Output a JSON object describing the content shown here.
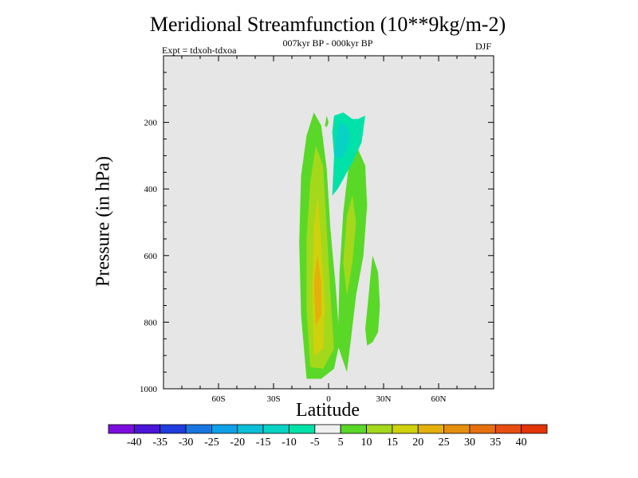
{
  "chart_data": {
    "type": "contour",
    "title": "Meridional Streamfunction (10**9kg/m-2)",
    "subtitle": "007kyr BP - 000kyr BP",
    "annotations": {
      "experiment": "Expt = tdxoh-tdxoa",
      "season": "DJF"
    },
    "xlabel": "Latitude",
    "ylabel": "Pressure (in hPa)",
    "xlim": [
      -90,
      90
    ],
    "ylim": [
      1000,
      0
    ],
    "x_ticks": [
      {
        "value": -60,
        "label": "60S"
      },
      {
        "value": -30,
        "label": "30S"
      },
      {
        "value": 0,
        "label": "0"
      },
      {
        "value": 30,
        "label": "30N"
      },
      {
        "value": 60,
        "label": "60N"
      }
    ],
    "y_ticks": [
      {
        "value": 200,
        "label": "200"
      },
      {
        "value": 400,
        "label": "400"
      },
      {
        "value": 600,
        "label": "600"
      },
      {
        "value": 800,
        "label": "800"
      },
      {
        "value": 1000,
        "label": "1000"
      }
    ],
    "background_color": "#e6e6e6",
    "colorbar": {
      "levels": [
        "-40",
        "-35",
        "-30",
        "-25",
        "-20",
        "-15",
        "-10",
        "-5",
        "5",
        "10",
        "15",
        "20",
        "25",
        "30",
        "35",
        "40"
      ],
      "colors": [
        "#7b0ede",
        "#4a14d9",
        "#1f3cdc",
        "#1976e0",
        "#0ea1e6",
        "#0bbfd6",
        "#08d2c4",
        "#00e2a8",
        "#f0f0f0",
        "#5ad828",
        "#a4d81b",
        "#cfd10d",
        "#e3b00c",
        "#e4900e",
        "#e6700f",
        "#e74e10",
        "#e3340a"
      ]
    },
    "regions": [
      {
        "level": "5 to 10",
        "color": "#5ad828",
        "points": [
          [
            -12,
            970
          ],
          [
            -15,
            780
          ],
          [
            -16,
            560
          ],
          [
            -15,
            360
          ],
          [
            -12,
            240
          ],
          [
            -8,
            170
          ],
          [
            -4,
            210
          ],
          [
            -1,
            340
          ],
          [
            1,
            520
          ],
          [
            4,
            700
          ],
          [
            6,
            860
          ],
          [
            3,
            940
          ],
          [
            -4,
            970
          ],
          [
            -12,
            970
          ]
        ]
      },
      {
        "level": "5 to 10",
        "color": "#5ad828",
        "points": [
          [
            5,
            870
          ],
          [
            6,
            650
          ],
          [
            8,
            470
          ],
          [
            11,
            330
          ],
          [
            16,
            280
          ],
          [
            20,
            330
          ],
          [
            21,
            450
          ],
          [
            19,
            600
          ],
          [
            15,
            720
          ],
          [
            12,
            860
          ],
          [
            10,
            950
          ],
          [
            5,
            870
          ]
        ]
      },
      {
        "level": "5 to 10",
        "color": "#5ad828",
        "points": [
          [
            20,
            820
          ],
          [
            22,
            710
          ],
          [
            23,
            650
          ],
          [
            24,
            600
          ],
          [
            27,
            650
          ],
          [
            28,
            750
          ],
          [
            27,
            830
          ],
          [
            24,
            860
          ],
          [
            21,
            870
          ],
          [
            20,
            820
          ]
        ]
      },
      {
        "level": "5 to 10",
        "color": "#5ad828",
        "points": [
          [
            -2,
            210
          ],
          [
            -1,
            180
          ],
          [
            0,
            200
          ],
          [
            -1,
            215
          ],
          [
            -2,
            210
          ]
        ]
      },
      {
        "level": "10 to 15",
        "color": "#a4d81b",
        "points": [
          [
            -10,
            935
          ],
          [
            -12,
            760
          ],
          [
            -12,
            550
          ],
          [
            -10,
            380
          ],
          [
            -7,
            270
          ],
          [
            -3,
            330
          ],
          [
            -1,
            520
          ],
          [
            1,
            720
          ],
          [
            3,
            880
          ],
          [
            -3,
            940
          ],
          [
            -10,
            935
          ]
        ]
      },
      {
        "level": "10 to 15",
        "color": "#a4d81b",
        "points": [
          [
            8,
            620
          ],
          [
            10,
            480
          ],
          [
            13,
            420
          ],
          [
            15,
            500
          ],
          [
            13,
            620
          ],
          [
            10,
            720
          ],
          [
            8,
            620
          ]
        ]
      },
      {
        "level": "15 to 20",
        "color": "#cfd10d",
        "points": [
          [
            -8,
            900
          ],
          [
            -9,
            720
          ],
          [
            -8,
            520
          ],
          [
            -6,
            420
          ],
          [
            -4,
            560
          ],
          [
            -2,
            760
          ],
          [
            -3,
            880
          ],
          [
            -8,
            900
          ]
        ]
      },
      {
        "level": "20 to 25",
        "color": "#e3b00c",
        "points": [
          [
            -7,
            810
          ],
          [
            -8,
            680
          ],
          [
            -6,
            600
          ],
          [
            -4,
            680
          ],
          [
            -4,
            780
          ],
          [
            -7,
            810
          ]
        ]
      },
      {
        "level": "-5 to -10",
        "color": "#00e2a8",
        "points": [
          [
            2,
            420
          ],
          [
            3,
            300
          ],
          [
            2,
            230
          ],
          [
            3,
            180
          ],
          [
            8,
            170
          ],
          [
            13,
            190
          ],
          [
            16,
            190
          ],
          [
            20,
            180
          ],
          [
            18,
            260
          ],
          [
            13,
            320
          ],
          [
            8,
            370
          ],
          [
            5,
            400
          ],
          [
            2,
            420
          ]
        ]
      },
      {
        "level": "-10 to -15",
        "color": "#08d2c4",
        "points": [
          [
            3,
            300
          ],
          [
            4,
            250
          ],
          [
            6,
            200
          ],
          [
            10,
            210
          ],
          [
            12,
            240
          ],
          [
            10,
            280
          ],
          [
            7,
            310
          ],
          [
            3,
            300
          ]
        ]
      }
    ]
  }
}
